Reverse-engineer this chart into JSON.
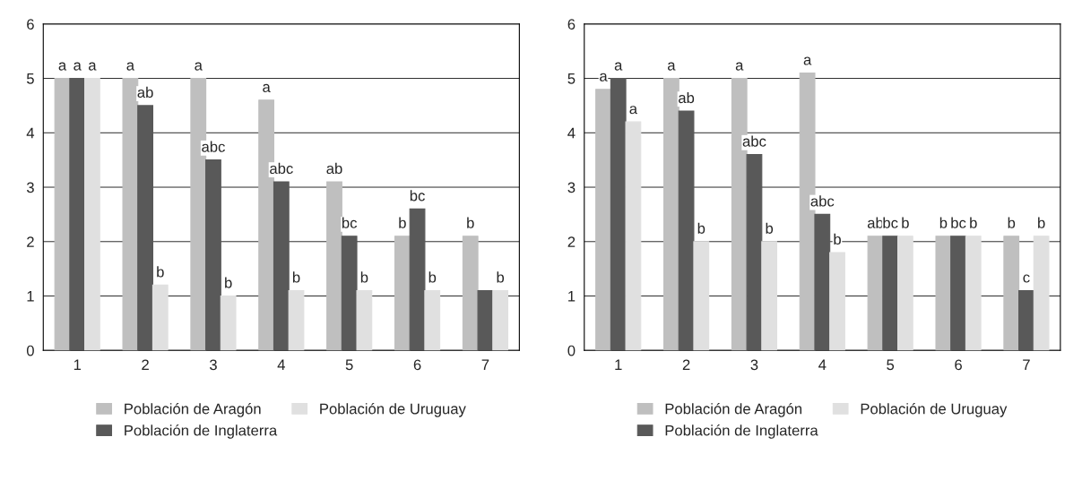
{
  "chart_data": [
    {
      "type": "bar",
      "categories": [
        "1",
        "2",
        "3",
        "4",
        "5",
        "6",
        "7"
      ],
      "ylim": [
        0,
        6
      ],
      "yticks": [
        0,
        1,
        2,
        3,
        4,
        5,
        6
      ],
      "grid": "y",
      "legend": "bottom",
      "series": [
        {
          "name": "Población de Aragón",
          "color": "#bfbfbf",
          "values": [
            5,
            5,
            5,
            4.6,
            3.1,
            2.1,
            2.1
          ],
          "value_labels": [
            "a",
            "a",
            "a",
            "a",
            "ab",
            "b",
            "b"
          ]
        },
        {
          "name": "Población de Inglaterra",
          "color": "#595959",
          "values": [
            5,
            4.5,
            3.5,
            3.1,
            2.1,
            2.6,
            1.1
          ],
          "value_labels": [
            "a",
            "ab",
            "abc",
            "abc",
            "bc",
            "bc",
            null
          ]
        },
        {
          "name": "Población de Uruguay",
          "color": "#e0e0e0",
          "values": [
            5,
            1.2,
            1,
            1.1,
            1.1,
            1.1,
            1.1
          ],
          "value_labels": [
            "a",
            "b",
            "b",
            "b",
            "b",
            "b",
            "b"
          ]
        }
      ]
    },
    {
      "type": "bar",
      "categories": [
        "1",
        "2",
        "3",
        "4",
        "5",
        "6",
        "7"
      ],
      "ylim": [
        0,
        6
      ],
      "yticks": [
        0,
        1,
        2,
        3,
        4,
        5,
        6
      ],
      "grid": "y",
      "legend": "bottom",
      "series": [
        {
          "name": "Población de Aragón",
          "color": "#bfbfbf",
          "values": [
            4.8,
            5,
            5,
            5.1,
            2.1,
            2.1,
            2.1
          ],
          "value_labels": [
            "a",
            "a",
            "a",
            "a",
            "ab",
            "b",
            "b"
          ]
        },
        {
          "name": "Población de Inglaterra",
          "color": "#595959",
          "values": [
            5,
            4.4,
            3.6,
            2.5,
            2.1,
            2.1,
            1.1
          ],
          "value_labels": [
            "a",
            "ab",
            "abc",
            "abc",
            "bc",
            "bc",
            "c"
          ]
        },
        {
          "name": "Población de Uruguay",
          "color": "#e0e0e0",
          "values": [
            4.2,
            2,
            2,
            1.8,
            2.1,
            2.1,
            2.1
          ],
          "value_labels": [
            "a",
            "b",
            "b",
            "b",
            "b",
            "b",
            "b"
          ]
        }
      ]
    }
  ]
}
